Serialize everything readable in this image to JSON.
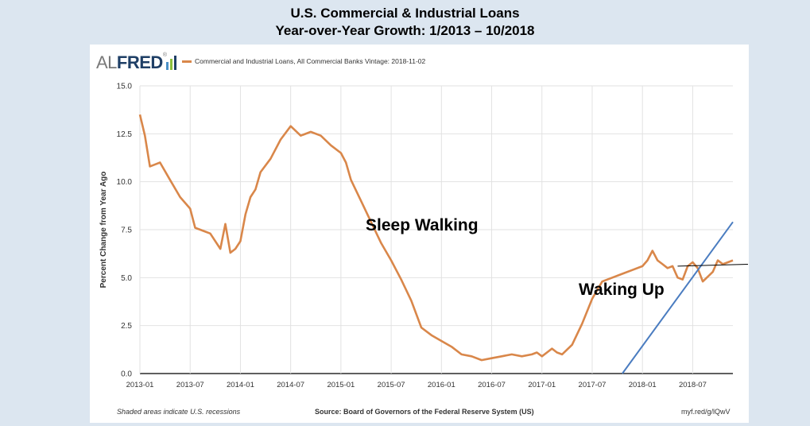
{
  "title": {
    "line1": "U.S. Commercial & Industrial Loans",
    "line2": "Year-over-Year Growth: 1/2013 – 10/2018"
  },
  "logo": {
    "al": "AL",
    "fred": "FRED",
    "reg": "®"
  },
  "legend": {
    "label": "Commercial and Industrial Loans, All Commercial Banks Vintage: 2018-11-02",
    "color": "#d9874a"
  },
  "footer": {
    "recessions_note": "Shaded areas indicate U.S. recessions",
    "source": "Source: Board of Governors of the Federal Reserve System (US)",
    "url": "myf.red/g/lQwV"
  },
  "annotations": {
    "sleep": "Sleep Walking",
    "waking": "Waking Up"
  },
  "chart_data": {
    "type": "line",
    "ylabel": "Percent Change from Year Ago",
    "xlabel": "",
    "ylim": [
      0,
      15
    ],
    "yticks": [
      "0.0",
      "2.5",
      "5.0",
      "7.5",
      "10.0",
      "12.5",
      "15.0"
    ],
    "xticks": [
      "2013-01",
      "2013-07",
      "2014-01",
      "2014-07",
      "2015-01",
      "2015-07",
      "2016-01",
      "2016-07",
      "2017-01",
      "2017-07",
      "2018-01",
      "2018-07"
    ],
    "xlim": [
      2013.0,
      2018.9
    ],
    "grid": true,
    "series": [
      {
        "name": "Commercial and Industrial Loans, All Commercial Banks",
        "color": "#d9874a",
        "x": [
          2013.0,
          2013.05,
          2013.1,
          2013.15,
          2013.2,
          2013.3,
          2013.4,
          2013.5,
          2013.55,
          2013.6,
          2013.7,
          2013.8,
          2013.85,
          2013.9,
          2013.95,
          2014.0,
          2014.05,
          2014.1,
          2014.15,
          2014.2,
          2014.3,
          2014.4,
          2014.5,
          2014.6,
          2014.7,
          2014.8,
          2014.9,
          2015.0,
          2015.05,
          2015.1,
          2015.2,
          2015.3,
          2015.4,
          2015.5,
          2015.6,
          2015.7,
          2015.8,
          2015.9,
          2016.0,
          2016.1,
          2016.2,
          2016.3,
          2016.4,
          2016.5,
          2016.6,
          2016.7,
          2016.8,
          2016.9,
          2016.95,
          2017.0,
          2017.05,
          2017.1,
          2017.15,
          2017.2,
          2017.3,
          2017.4,
          2017.5,
          2017.6,
          2017.7,
          2017.8,
          2017.9,
          2018.0,
          2018.05,
          2018.1,
          2018.15,
          2018.2,
          2018.25,
          2018.3,
          2018.35,
          2018.4,
          2018.45,
          2018.5,
          2018.55,
          2018.6,
          2018.7,
          2018.75,
          2018.8,
          2018.85,
          2018.9
        ],
        "values": [
          13.5,
          12.4,
          10.8,
          10.9,
          11.0,
          10.1,
          9.2,
          8.6,
          7.6,
          7.5,
          7.3,
          6.5,
          7.8,
          6.3,
          6.5,
          6.9,
          8.3,
          9.2,
          9.6,
          10.5,
          11.2,
          12.2,
          12.9,
          12.4,
          12.6,
          12.4,
          11.9,
          11.5,
          11.0,
          10.1,
          9.0,
          7.9,
          6.8,
          5.9,
          4.9,
          3.8,
          2.4,
          2.0,
          1.7,
          1.4,
          1.0,
          0.9,
          0.7,
          0.8,
          0.9,
          1.0,
          0.9,
          1.0,
          1.1,
          0.9,
          1.1,
          1.3,
          1.1,
          1.0,
          1.5,
          2.6,
          3.9,
          4.8,
          5.0,
          5.2,
          5.4,
          5.6,
          5.9,
          6.4,
          5.9,
          5.7,
          5.5,
          5.6,
          5.0,
          4.9,
          5.6,
          5.8,
          5.5,
          4.8,
          5.3,
          5.9,
          5.7,
          5.8,
          5.9
        ]
      }
    ],
    "trend_lines": [
      {
        "name": "rising trend",
        "color": "#4a7cc0",
        "x": [
          2017.8,
          2018.9
        ],
        "values": [
          0.0,
          7.9
        ]
      },
      {
        "name": "flat level",
        "color": "#000000",
        "x": [
          2018.35,
          2019.05
        ],
        "values": [
          5.6,
          5.7
        ]
      }
    ]
  }
}
